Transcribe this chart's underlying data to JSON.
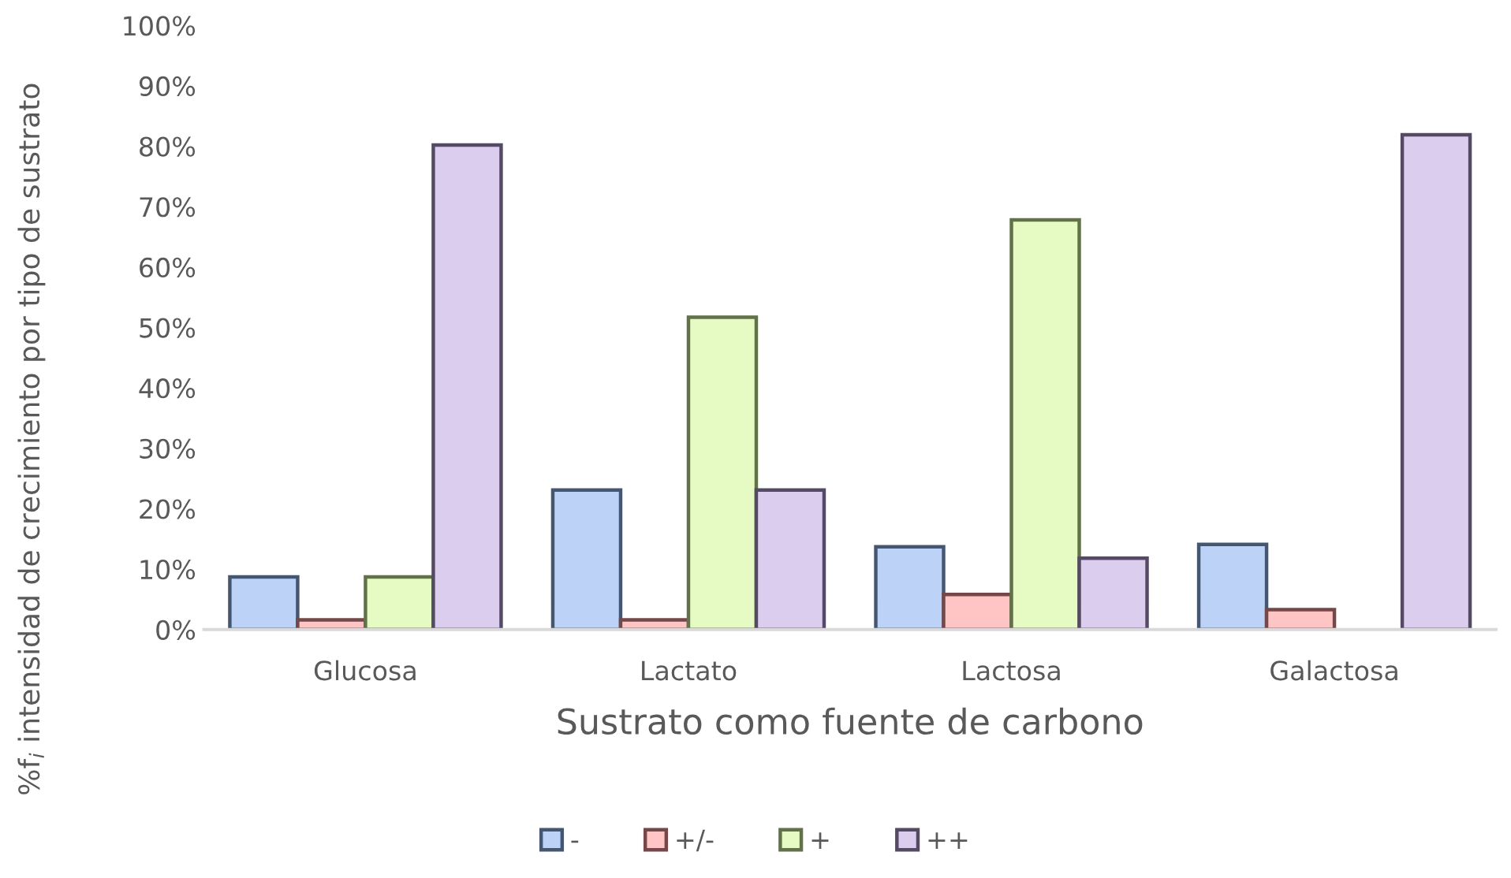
{
  "chart_data": {
    "type": "bar",
    "xlabel": "Sustrato como fuente de carbono",
    "ylabel": "%f$_{i}$ intensidad de crecimiento por tipo de sustrato",
    "categories": [
      "Glucosa",
      "Lactato",
      "Lactosa",
      "Galactosa"
    ],
    "series": [
      {
        "name": "-",
        "color": "#bcd3f7",
        "values": [
          8.7,
          23.1,
          13.7,
          14.1
        ]
      },
      {
        "name": "+/-",
        "color": "#ffc4c4",
        "values": [
          1.6,
          1.6,
          5.8,
          3.3
        ]
      },
      {
        "name": "+",
        "color": "#e6fbc4",
        "values": [
          8.7,
          51.7,
          67.8,
          null
        ]
      },
      {
        "name": "++",
        "color": "#dbcdee",
        "values": [
          80.2,
          23.1,
          11.8,
          81.9
        ]
      }
    ],
    "ylim": [
      0,
      100
    ],
    "yticks": [
      {
        "value": 0,
        "label": "0%"
      },
      {
        "value": 10,
        "label": "10%"
      },
      {
        "value": 20,
        "label": "20%"
      },
      {
        "value": 30,
        "label": "30%"
      },
      {
        "value": 40,
        "label": "40%"
      },
      {
        "value": 50,
        "label": "50%"
      },
      {
        "value": 60,
        "label": "60%"
      },
      {
        "value": 70,
        "label": "70%"
      },
      {
        "value": 80,
        "label": "80%"
      },
      {
        "value": 90,
        "label": "90%"
      },
      {
        "value": 100,
        "label": "100%"
      }
    ],
    "grid": false,
    "legend": "bottom"
  }
}
